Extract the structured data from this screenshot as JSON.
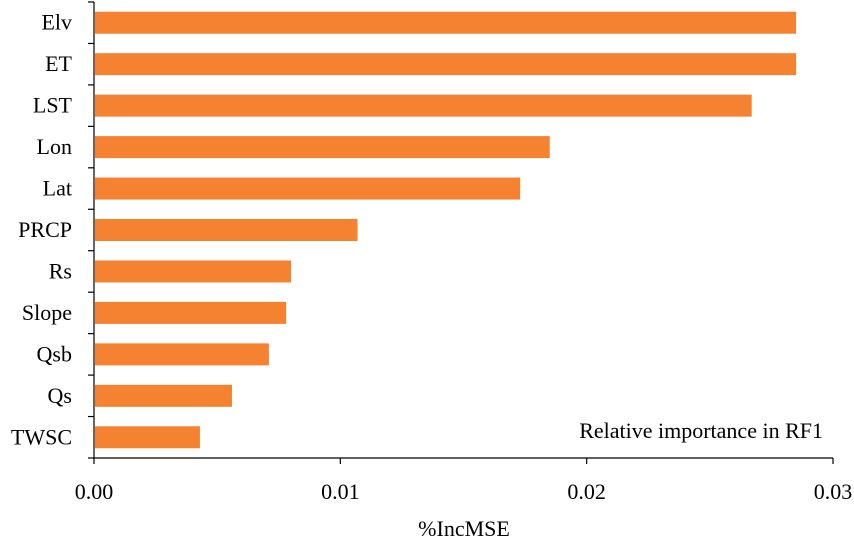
{
  "chart_data": {
    "type": "bar",
    "orientation": "horizontal",
    "categories": [
      "Elv",
      "ET",
      "LST",
      "Lon",
      "Lat",
      "PRCP",
      "Rs",
      "Slope",
      "Qsb",
      "Qs",
      "TWSC"
    ],
    "values": [
      0.0285,
      0.0285,
      0.0267,
      0.0185,
      0.0173,
      0.0107,
      0.008,
      0.0078,
      0.0071,
      0.0056,
      0.0043
    ],
    "xlabel": "%IncMSE",
    "ylabel": "",
    "xlim": [
      0,
      0.03
    ],
    "xticks": [
      "0.00",
      "0.01",
      "0.02",
      "0.03"
    ],
    "annotation": "Relative importance in RF1",
    "bar_color": "#f58231",
    "axis_color": "#000000",
    "grid": false
  }
}
